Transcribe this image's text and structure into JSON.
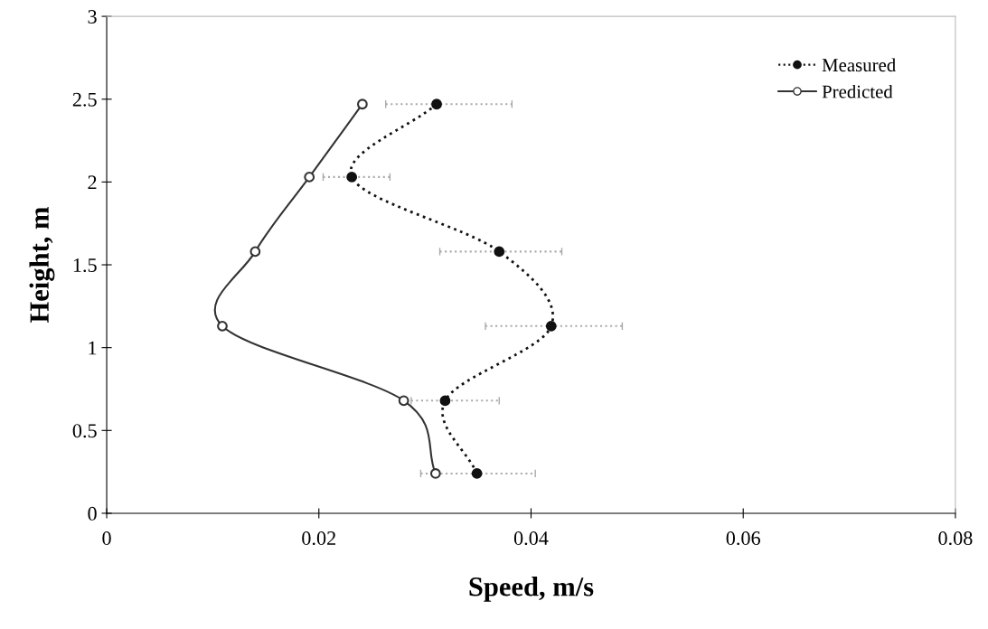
{
  "chart_data": {
    "type": "line",
    "xlabel": "Speed, m/s",
    "ylabel": "Height, m",
    "xlim": [
      0,
      0.08
    ],
    "xticks": [
      0,
      0.02,
      0.04,
      0.06,
      0.08
    ],
    "ylim": [
      0,
      3
    ],
    "yticks": [
      0,
      0.5,
      1,
      1.5,
      2,
      2.5,
      3
    ],
    "grid": false,
    "legend": "top right",
    "series": [
      {
        "name": "Measured",
        "color": "#111111",
        "marker": "circle",
        "line_style": "dotted",
        "x": [
          0.0311,
          0.0231,
          0.037,
          0.0419,
          0.0319,
          0.0349
        ],
        "values": [
          2.47,
          2.03,
          1.58,
          1.13,
          0.68,
          0.24
        ],
        "xerrors": [
          [
            0.0263,
            0.0382
          ],
          [
            0.0204,
            0.0267
          ],
          [
            0.0314,
            0.0429
          ],
          [
            0.0357,
            0.0486
          ],
          [
            0.0287,
            0.037
          ],
          [
            0.0296,
            0.0404
          ]
        ]
      },
      {
        "name": "Predicted",
        "color": "#333333",
        "marker": "circle_open",
        "line_style": "solid",
        "x": [
          0.0241,
          0.0191,
          0.014,
          0.0109,
          0.028,
          0.031
        ],
        "values": [
          2.47,
          2.03,
          1.58,
          1.13,
          0.68,
          0.24
        ]
      }
    ]
  }
}
